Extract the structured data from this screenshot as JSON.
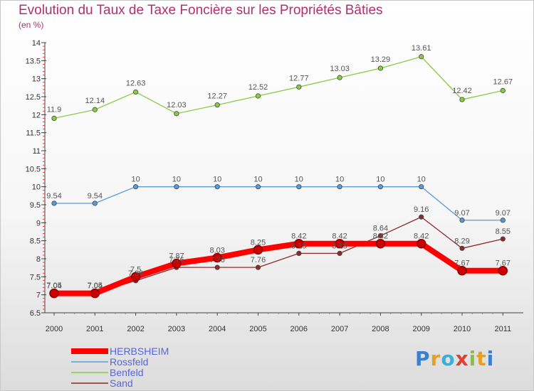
{
  "header": {
    "title": "Evolution du Taux de Taxe Foncière sur les Propriétés Bâties",
    "subtitle": "(en %)"
  },
  "logo": {
    "text": "Proxiti",
    "letters": [
      "P",
      "r",
      "o",
      "x",
      "i",
      "t",
      "i"
    ]
  },
  "chart_data": {
    "type": "line",
    "x": [
      "2000",
      "2001",
      "2002",
      "2003",
      "2004",
      "2005",
      "2006",
      "2007",
      "2008",
      "2009",
      "2010",
      "2011"
    ],
    "ylim": [
      6.5,
      14
    ],
    "yticks": [
      "6.5",
      "7",
      "7.5",
      "8",
      "8.5",
      "9",
      "9.5",
      "10",
      "10.5",
      "11",
      "11.5",
      "12",
      "12.5",
      "13",
      "13.5",
      "14"
    ],
    "legend_position": "bottom-left",
    "grid": false,
    "series": [
      {
        "name": "HERBSHEIM",
        "color": "#ff0000",
        "values": [
          7.04,
          7.04,
          7.5,
          7.87,
          8.03,
          8.25,
          8.42,
          8.42,
          8.42,
          8.42,
          7.67,
          7.67
        ],
        "labels": [
          "7.04",
          "7.04",
          "7.5",
          "7.87",
          "8.03",
          "8.25",
          "8.42",
          "8.42",
          "8.42",
          "8.42",
          "7.67",
          "7.67"
        ]
      },
      {
        "name": "Rossfeld",
        "color": "#5b9bd5",
        "values": [
          9.54,
          9.54,
          10,
          10,
          10,
          10,
          10,
          10,
          10,
          10,
          9.07,
          9.07
        ],
        "labels": [
          "9.54",
          "9.54",
          "10",
          "10",
          "10",
          "10",
          "10",
          "10",
          "10",
          "10",
          "9.07",
          "9.07"
        ]
      },
      {
        "name": "Benfeld",
        "color": "#88cc44",
        "values": [
          11.9,
          12.14,
          12.63,
          12.03,
          12.27,
          12.52,
          12.77,
          13.03,
          13.29,
          13.61,
          12.42,
          12.67
        ],
        "labels": [
          "11.9",
          "12.14",
          "12.63",
          "12.03",
          "12.27",
          "12.52",
          "12.77",
          "13.03",
          "13.29",
          "13.61",
          "12.42",
          "12.67"
        ]
      },
      {
        "name": "Sand",
        "color": "#8b2a2a",
        "values": [
          7.05,
          7.05,
          7.39,
          7.76,
          7.76,
          7.76,
          8.15,
          8.15,
          8.64,
          9.16,
          8.29,
          8.55
        ],
        "labels": [
          "7.05",
          "7.05",
          "7.39",
          "7.76",
          "7.76",
          "7.76",
          "8.15",
          "8.15",
          "8.64",
          "9.16",
          "8.29",
          "8.55"
        ]
      }
    ]
  }
}
